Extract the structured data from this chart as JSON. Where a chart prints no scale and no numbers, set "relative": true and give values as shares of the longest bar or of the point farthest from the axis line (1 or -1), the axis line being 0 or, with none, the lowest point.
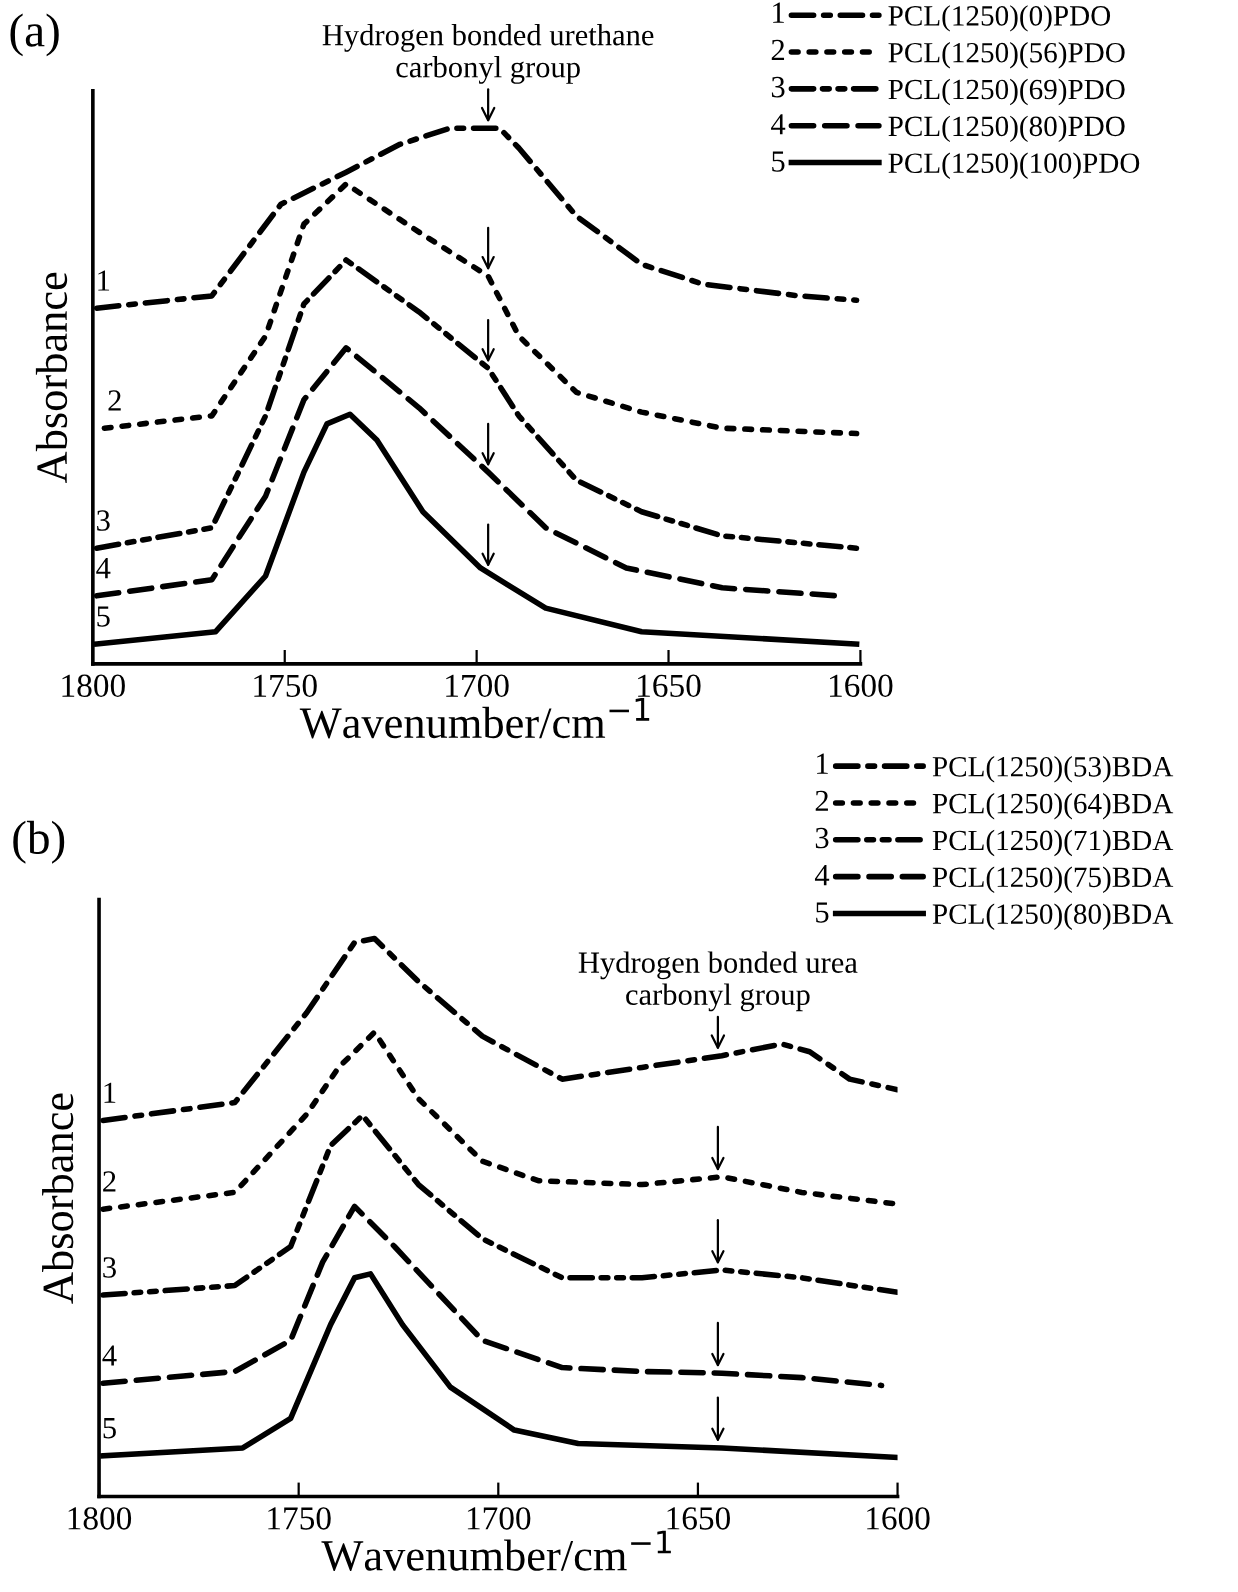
{
  "chart_data": [
    {
      "type": "line",
      "title": "(a)",
      "xlabel": "Wavenumber/cm$^{−1}$",
      "ylabel": "Absorbance",
      "relative": true,
      "xlim": [
        1800,
        1600
      ],
      "xticks": [
        1800,
        1750,
        1700,
        1650,
        1600
      ],
      "tick_labels": "x",
      "legend": "top right",
      "grid": false,
      "series": [
        {
          "name": "PCL(1250)(0)PDO",
          "color": "#000000",
          "line_style": "dashdot",
          "x": [
            1799,
            1769,
            1751,
            1734,
            1720,
            1707,
            1694,
            1689,
            1674,
            1657,
            1641,
            1616,
            1601
          ],
          "values": [
            0.664,
            0.687,
            0.858,
            0.918,
            0.97,
            1.0,
            1.0,
            0.963,
            0.836,
            0.746,
            0.709,
            0.687,
            0.679
          ]
        },
        {
          "name": "PCL(1250)(56)PDO",
          "color": "#000000",
          "line_style": "dotted",
          "x": [
            1797,
            1769,
            1755,
            1745,
            1734,
            1715,
            1697,
            1689,
            1674,
            1657,
            1636,
            1601
          ],
          "values": [
            0.44,
            0.463,
            0.612,
            0.821,
            0.896,
            0.806,
            0.724,
            0.612,
            0.507,
            0.47,
            0.44,
            0.43
          ]
        },
        {
          "name": "PCL(1250)(69)PDO",
          "color": "#000000",
          "line_style": "dashdotdot",
          "x": [
            1799,
            1769,
            1755,
            1745,
            1734,
            1715,
            1697,
            1689,
            1674,
            1657,
            1636,
            1601
          ],
          "values": [
            0.216,
            0.254,
            0.463,
            0.672,
            0.754,
            0.657,
            0.552,
            0.463,
            0.343,
            0.284,
            0.239,
            0.216
          ]
        },
        {
          "name": "PCL(1250)(80)PDO",
          "color": "#000000",
          "line_style": "dashed",
          "x": [
            1799,
            1769,
            1755,
            1745,
            1734,
            1715,
            1697,
            1682,
            1661,
            1636,
            1606
          ],
          "values": [
            0.127,
            0.157,
            0.313,
            0.493,
            0.59,
            0.478,
            0.358,
            0.254,
            0.179,
            0.142,
            0.127
          ]
        },
        {
          "name": "PCL(1250)(100)PDO",
          "color": "#000000",
          "line_style": "solid",
          "x": [
            1799,
            1768,
            1755,
            1745,
            1739,
            1733,
            1726,
            1714,
            1699,
            1682,
            1657,
            1601
          ],
          "values": [
            0.037,
            0.06,
            0.164,
            0.358,
            0.448,
            0.466,
            0.418,
            0.284,
            0.179,
            0.104,
            0.06,
            0.037
          ]
        }
      ],
      "annotations": [
        {
          "text": "1",
          "x": 1800,
          "y": 0.664
        },
        {
          "text": "2",
          "x": 1797,
          "y": 0.44
        },
        {
          "text": "3",
          "x": 1800,
          "y": 0.216
        },
        {
          "text": "4",
          "x": 1800,
          "y": 0.127
        },
        {
          "text": "5",
          "x": 1800,
          "y": 0.037
        },
        {
          "text": "Hydrogen bonded urethane\ncarbonyl group",
          "x": 1697,
          "y": 1.0
        }
      ]
    },
    {
      "type": "line",
      "title": "(b)",
      "xlabel": "Wavenumber/cm$^{−1}$",
      "ylabel": "Absorbance",
      "relative": true,
      "xlim": [
        1800,
        1600
      ],
      "xticks": [
        1800,
        1750,
        1700,
        1650,
        1600
      ],
      "tick_labels": "x",
      "legend": "top right",
      "grid": false,
      "series": [
        {
          "name": "PCL(1250)(53)BDA",
          "color": "#000000",
          "line_style": "dashdot",
          "x": [
            1799,
            1766,
            1748,
            1736,
            1731,
            1720,
            1704,
            1684,
            1664,
            1644,
            1629,
            1622,
            1612,
            1600
          ],
          "values": [
            0.674,
            0.706,
            0.867,
            0.993,
            1.0,
            0.923,
            0.825,
            0.748,
            0.769,
            0.79,
            0.811,
            0.797,
            0.748,
            0.729
          ]
        },
        {
          "name": "PCL(1250)(64)BDA",
          "color": "#000000",
          "line_style": "dotted",
          "x": [
            1799,
            1766,
            1748,
            1740,
            1731,
            1720,
            1704,
            1690,
            1664,
            1644,
            1624,
            1600
          ],
          "values": [
            0.515,
            0.545,
            0.685,
            0.769,
            0.832,
            0.713,
            0.601,
            0.566,
            0.559,
            0.573,
            0.545,
            0.524
          ]
        },
        {
          "name": "PCL(1250)(71)BDA",
          "color": "#000000",
          "line_style": "dashdotdot",
          "x": [
            1799,
            1766,
            1752,
            1742,
            1734,
            1720,
            1704,
            1684,
            1664,
            1644,
            1624,
            1600
          ],
          "values": [
            0.361,
            0.378,
            0.448,
            0.629,
            0.683,
            0.559,
            0.462,
            0.392,
            0.392,
            0.406,
            0.392,
            0.366
          ]
        },
        {
          "name": "PCL(1250)(75)BDA",
          "color": "#000000",
          "line_style": "dashed",
          "x": [
            1799,
            1766,
            1752,
            1744,
            1736,
            1726,
            1704,
            1684,
            1664,
            1644,
            1624,
            1604
          ],
          "values": [
            0.203,
            0.224,
            0.28,
            0.42,
            0.52,
            0.448,
            0.28,
            0.231,
            0.224,
            0.221,
            0.213,
            0.199
          ]
        },
        {
          "name": "PCL(1250)(80)BDA",
          "color": "#000000",
          "line_style": "solid",
          "x": [
            1799,
            1764,
            1752,
            1742,
            1736,
            1732,
            1724,
            1712,
            1696,
            1680,
            1644,
            1600
          ],
          "values": [
            0.073,
            0.087,
            0.14,
            0.308,
            0.392,
            0.399,
            0.308,
            0.196,
            0.119,
            0.095,
            0.087,
            0.07
          ]
        }
      ],
      "annotations": [
        {
          "text": "1",
          "x": 1800,
          "y": 0.674
        },
        {
          "text": "2",
          "x": 1800,
          "y": 0.515
        },
        {
          "text": "3",
          "x": 1800,
          "y": 0.361
        },
        {
          "text": "4",
          "x": 1800,
          "y": 0.203
        },
        {
          "text": "5",
          "x": 1800,
          "y": 0.073
        },
        {
          "text": "Hydrogen bonded urea\ncarbonyl group",
          "x": 1645,
          "y": 0.79
        }
      ]
    }
  ]
}
